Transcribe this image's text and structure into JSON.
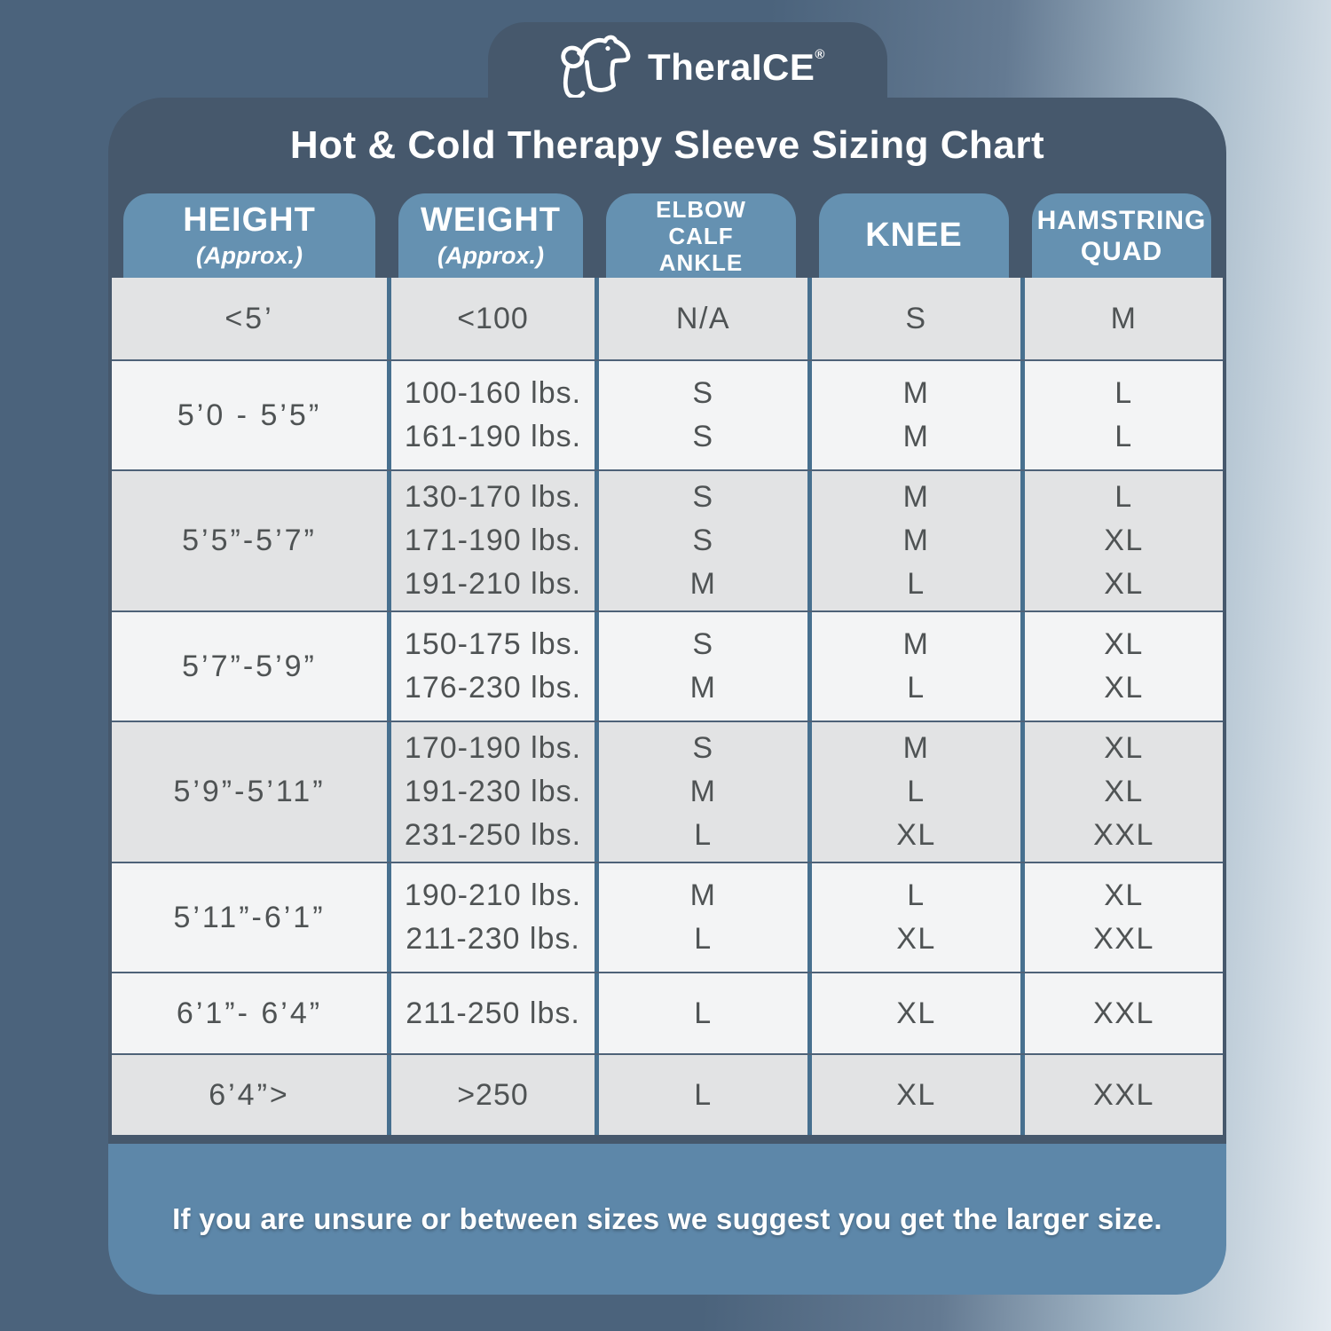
{
  "brand": {
    "name": "TheraICE",
    "registered_mark": "®",
    "logo_icon": "polar-bear-icon"
  },
  "title": "Hot & Cold Therapy Sleeve Sizing Chart",
  "table": {
    "columns": [
      {
        "id": "height",
        "lines": [
          "HEIGHT"
        ],
        "sublabel": "(Approx.)"
      },
      {
        "id": "weight",
        "lines": [
          "WEIGHT"
        ],
        "sublabel": "(Approx.)"
      },
      {
        "id": "elbow_calf_ankle",
        "lines": [
          "ELBOW",
          "CALF",
          "ANKLE"
        ],
        "sublabel": ""
      },
      {
        "id": "knee",
        "lines": [
          "KNEE"
        ],
        "sublabel": ""
      },
      {
        "id": "hamstring_quad",
        "lines": [
          "HAMSTRING",
          "QUAD"
        ],
        "sublabel": ""
      }
    ],
    "rows": [
      {
        "shade": "dark",
        "height": "<5’",
        "weight": [
          "<100"
        ],
        "elbow_calf_ankle": [
          "N/A"
        ],
        "knee": [
          "S"
        ],
        "hamstring_quad": [
          "M"
        ]
      },
      {
        "shade": "light",
        "height": "5’0 - 5’5”",
        "weight": [
          "100-160 lbs.",
          "161-190 lbs."
        ],
        "elbow_calf_ankle": [
          "S",
          "S"
        ],
        "knee": [
          "M",
          "M"
        ],
        "hamstring_quad": [
          "L",
          "L"
        ]
      },
      {
        "shade": "dark",
        "height": "5’5”-5’7”",
        "weight": [
          "130-170 lbs.",
          "171-190 lbs.",
          "191-210 lbs."
        ],
        "elbow_calf_ankle": [
          "S",
          "S",
          "M"
        ],
        "knee": [
          "M",
          "M",
          "L"
        ],
        "hamstring_quad": [
          "L",
          "XL",
          "XL"
        ]
      },
      {
        "shade": "light",
        "height": "5’7”-5’9”",
        "weight": [
          "150-175 lbs.",
          "176-230 lbs."
        ],
        "elbow_calf_ankle": [
          "S",
          "M"
        ],
        "knee": [
          "M",
          "L"
        ],
        "hamstring_quad": [
          "XL",
          "XL"
        ]
      },
      {
        "shade": "dark",
        "height": "5’9”-5’11”",
        "weight": [
          "170-190 lbs.",
          "191-230 lbs.",
          "231-250 lbs."
        ],
        "elbow_calf_ankle": [
          "S",
          "M",
          "L"
        ],
        "knee": [
          "M",
          "L",
          "XL"
        ],
        "hamstring_quad": [
          "XL",
          "XL",
          "XXL"
        ]
      },
      {
        "shade": "light",
        "height": "5’11”-6’1”",
        "weight": [
          "190-210 lbs.",
          "211-230 lbs."
        ],
        "elbow_calf_ankle": [
          "M",
          "L"
        ],
        "knee": [
          "L",
          "XL"
        ],
        "hamstring_quad": [
          "XL",
          "XXL"
        ]
      },
      {
        "shade": "light",
        "height": "6’1”- 6’4”",
        "weight": [
          "211-250 lbs."
        ],
        "elbow_calf_ankle": [
          "L"
        ],
        "knee": [
          "XL"
        ],
        "hamstring_quad": [
          "XXL"
        ]
      },
      {
        "shade": "dark",
        "height": "6’4”>",
        "weight": [
          ">250"
        ],
        "elbow_calf_ankle": [
          "L"
        ],
        "knee": [
          "XL"
        ],
        "hamstring_quad": [
          "XXL"
        ]
      }
    ]
  },
  "footer": {
    "note": "If you are unsure or between sizes we suggest you get the larger size."
  },
  "colors": {
    "card": "#46586c",
    "header_tab": "#6591b1",
    "footer_panel": "#5d87a9",
    "row_dark": "#e2e3e4",
    "row_light": "#f3f4f5",
    "divider": "#47708f",
    "text": "#4f5354"
  }
}
